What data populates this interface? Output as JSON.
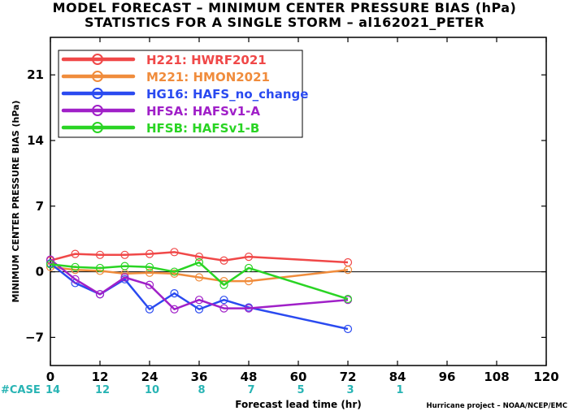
{
  "chart_data": {
    "type": "line",
    "title": "MODEL FORECAST – MINIMUM CENTER PRESSURE BIAS (hPa)",
    "subtitle": "STATISTICS FOR A SINGLE STORM – al162021_PETER",
    "xlabel": "Forecast lead time (hr)",
    "ylabel": "MINIMUM CENTER PRESSURE BIAS (hPa)",
    "xlim": [
      0,
      120
    ],
    "ylim": [
      -10,
      25
    ],
    "xticks": [
      0,
      12,
      24,
      36,
      48,
      60,
      72,
      84,
      96,
      108,
      120
    ],
    "yticks": [
      -7,
      0,
      7,
      14,
      21
    ],
    "zero_line": true,
    "grid": false,
    "legend_position": "top-left",
    "series": [
      {
        "id": "H221",
        "model": "HWRF2021",
        "color": "#f04848",
        "x": [
          0,
          6,
          12,
          18,
          24,
          30,
          36,
          42,
          48,
          72
        ],
        "y": [
          1.2,
          1.9,
          1.8,
          1.8,
          1.9,
          2.1,
          1.6,
          1.2,
          1.6,
          1.0
        ]
      },
      {
        "id": "M221",
        "model": "HMON2021",
        "color": "#f08c3c",
        "x": [
          0,
          6,
          12,
          18,
          24,
          30,
          36,
          42,
          48,
          72
        ],
        "y": [
          0.5,
          0.2,
          0.1,
          -0.2,
          -0.1,
          -0.2,
          -0.6,
          -1.0,
          -1.0,
          0.2
        ]
      },
      {
        "id": "HG16",
        "model": "HAFS_no_change",
        "color": "#2a4af0",
        "x": [
          0,
          6,
          12,
          18,
          24,
          30,
          36,
          42,
          48,
          72
        ],
        "y": [
          0.9,
          -1.2,
          -2.4,
          -0.8,
          -4.0,
          -2.3,
          -4.0,
          -3.0,
          -3.8,
          -6.1
        ]
      },
      {
        "id": "HFSA",
        "model": "HAFSv1-A",
        "color": "#a020c8",
        "x": [
          0,
          6,
          12,
          18,
          24,
          30,
          36,
          42,
          48,
          72
        ],
        "y": [
          1.3,
          -0.8,
          -2.4,
          -0.6,
          -1.4,
          -4.0,
          -3.0,
          -3.9,
          -3.9,
          -3.0
        ]
      },
      {
        "id": "HFSB",
        "model": "HAFSv1-B",
        "color": "#2ad424",
        "x": [
          0,
          6,
          12,
          18,
          24,
          30,
          36,
          42,
          48,
          72
        ],
        "y": [
          0.8,
          0.5,
          0.4,
          0.6,
          0.5,
          0.0,
          1.0,
          -1.4,
          0.4,
          -2.9
        ]
      }
    ],
    "case_row": {
      "label": "#CASE",
      "x": [
        0,
        12,
        24,
        36,
        48,
        60,
        72,
        84
      ],
      "counts": [
        "14",
        "12",
        "10",
        "8",
        "7",
        "5",
        "3",
        "1"
      ]
    },
    "credit": "Hurricane project – NOAA/NCEP/EMC"
  },
  "colors": {
    "axis": "#000000",
    "case_label": "#28b4b4",
    "case_count": "#28b4b4",
    "legend_border": "#000000"
  }
}
